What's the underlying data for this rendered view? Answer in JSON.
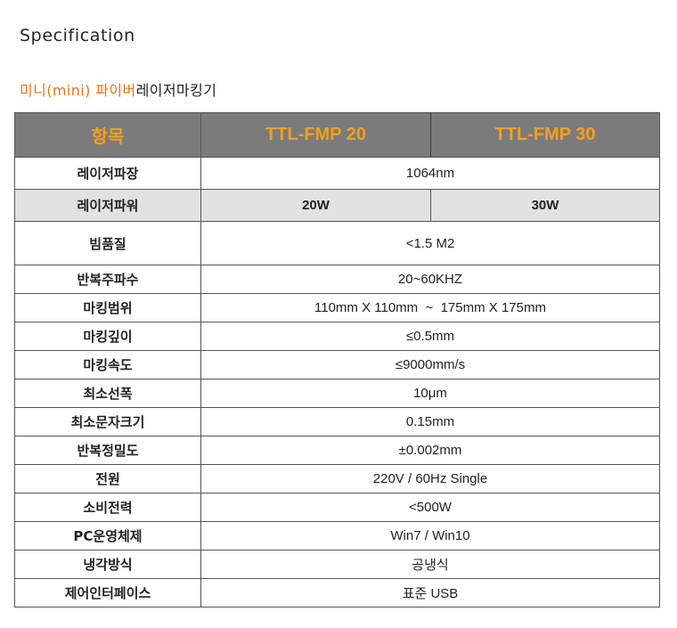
{
  "heading": "Specification",
  "product_title": {
    "accent": "미니(mini) 파이버",
    "rest": "레이저마킹기"
  },
  "table": {
    "header": {
      "item": "항목",
      "model_a": "TTL-FMP 20",
      "model_b": "TTL-FMP 30"
    },
    "rows": [
      {
        "label": "레이저파장",
        "value": "1064nm"
      },
      {
        "label": "레이저파워",
        "value_a": "20W",
        "value_b": "30W"
      },
      {
        "label": "빔품질",
        "value": "<1.5 M2"
      },
      {
        "label": "반복주파수",
        "value": "20~60KHZ"
      },
      {
        "label": "마킹범위",
        "value": "110mm X 110mm  ~  175mm X 175mm"
      },
      {
        "label": "마킹깊이",
        "value": "≤0.5mm"
      },
      {
        "label": "마킹속도",
        "value": "≤9000mm/s"
      },
      {
        "label": "최소선폭",
        "value": "10μm"
      },
      {
        "label": "최소문자크기",
        "value": "0.15mm"
      },
      {
        "label": "반복정밀도",
        "value": "±0.002mm"
      },
      {
        "label": "전원",
        "value": "220V / 60Hz Single"
      },
      {
        "label": "소비전력",
        "value": "<500W"
      },
      {
        "label": "PC운영체제",
        "value": "Win7 / Win10"
      },
      {
        "label": "냉각방식",
        "value": "공냉식"
      },
      {
        "label": "제어인터페이스",
        "value": "표준 USB"
      }
    ]
  }
}
